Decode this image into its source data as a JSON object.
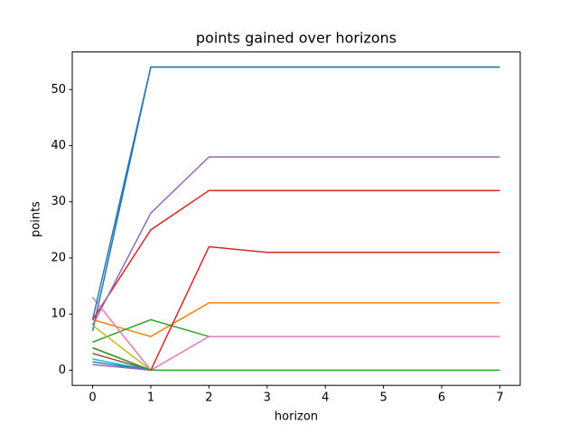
{
  "chart_data": {
    "type": "line",
    "title": "points gained over horizons",
    "xlabel": "horizon",
    "ylabel": "points",
    "x": [
      0,
      1,
      2,
      3,
      4,
      5,
      6,
      7
    ],
    "xlim": [
      -0.35,
      7.35
    ],
    "xticks": [
      0,
      1,
      2,
      3,
      4,
      5,
      6,
      7
    ],
    "ylim": [
      -2.7,
      56.7
    ],
    "yticks": [
      0,
      10,
      20,
      30,
      40,
      50
    ],
    "series": [
      {
        "color": "#1f77b4",
        "values": [
          7,
          54,
          54,
          54,
          54,
          54,
          54,
          54
        ]
      },
      {
        "color": "#ff7f0e",
        "values": [
          9,
          6,
          12,
          12,
          12,
          12,
          12,
          12
        ]
      },
      {
        "color": "#2ca02c",
        "values": [
          5,
          9,
          6,
          null,
          null,
          null,
          null,
          null
        ]
      },
      {
        "color": "#d62728",
        "values": [
          9,
          25,
          32,
          32,
          32,
          32,
          32,
          32
        ]
      },
      {
        "color": "#9467bd",
        "values": [
          8,
          28,
          38,
          38,
          38,
          38,
          38,
          38
        ]
      },
      {
        "color": "#8c564b",
        "values": [
          3,
          0,
          null,
          null,
          null,
          null,
          null,
          null
        ]
      },
      {
        "color": "#e377c2",
        "values": [
          13,
          0,
          6,
          6,
          6,
          6,
          6,
          6
        ]
      },
      {
        "color": "#bcbd22",
        "values": [
          8,
          0,
          null,
          null,
          null,
          null,
          null,
          null
        ]
      },
      {
        "color": "#17becf",
        "values": [
          2,
          0,
          null,
          null,
          null,
          null,
          null,
          null
        ]
      },
      {
        "color": "#1f77b4",
        "values": [
          1.5,
          0,
          null,
          null,
          null,
          null,
          null,
          null
        ]
      },
      {
        "color": "#d62728",
        "values": [
          4,
          0,
          22,
          21,
          21,
          21,
          21,
          21
        ]
      },
      {
        "color": "#9467bd",
        "values": [
          1,
          0,
          null,
          null,
          null,
          null,
          null,
          null
        ]
      },
      {
        "color": "#2ca02c",
        "values": [
          4,
          0,
          0,
          0,
          0,
          0,
          0,
          0
        ]
      },
      {
        "color": "#2a7ab0",
        "values": [
          9,
          54,
          54,
          54,
          54,
          54,
          54,
          54
        ]
      }
    ]
  }
}
